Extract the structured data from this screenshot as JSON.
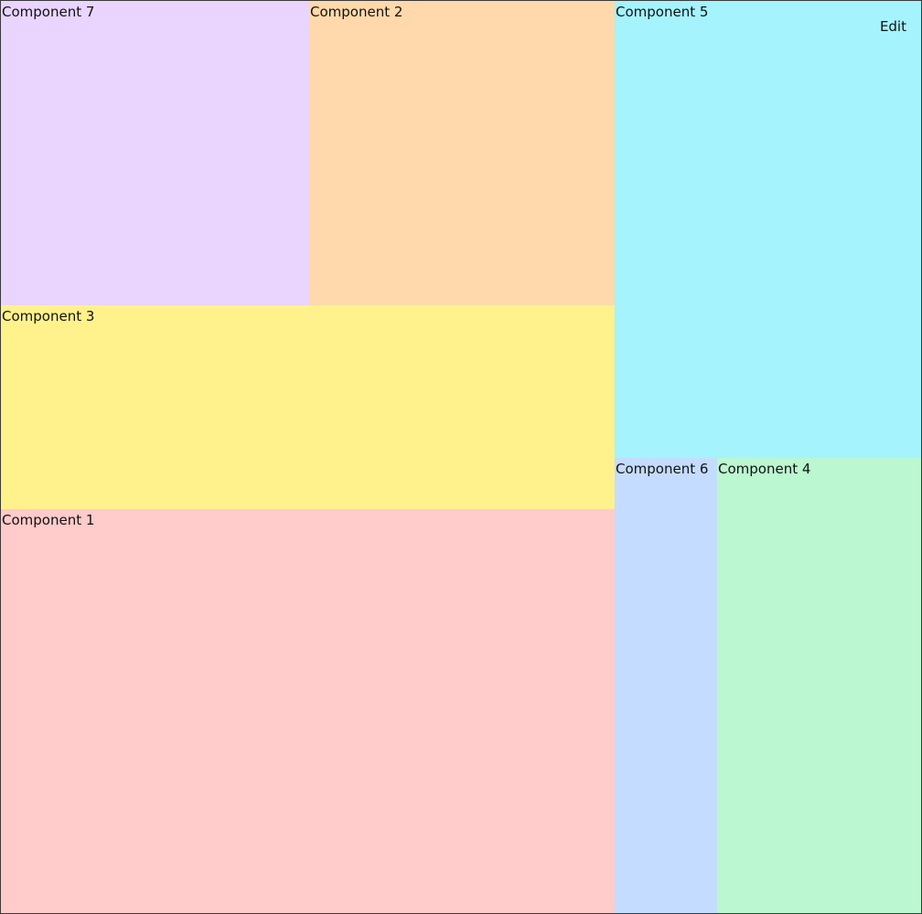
{
  "toolbar": {
    "edit_label": "Edit"
  },
  "panels": {
    "c1": {
      "label": "Component 1",
      "color": "#ffcbcb"
    },
    "c2": {
      "label": "Component 2",
      "color": "#ffd9ab"
    },
    "c3": {
      "label": "Component 3",
      "color": "#fff28c"
    },
    "c4": {
      "label": "Component 4",
      "color": "#bbf7d0"
    },
    "c5": {
      "label": "Component 5",
      "color": "#a5f3fc"
    },
    "c6": {
      "label": "Component 6",
      "color": "#c4dcff"
    },
    "c7": {
      "label": "Component 7",
      "color": "#e9d5ff"
    }
  }
}
